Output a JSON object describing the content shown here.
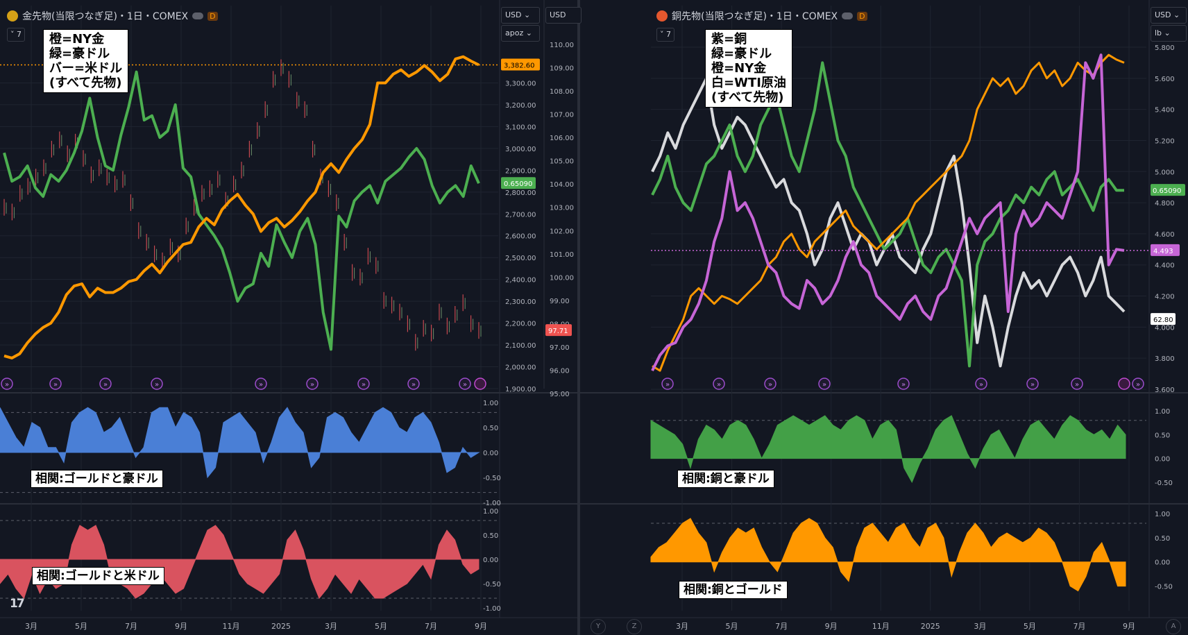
{
  "panels": {
    "left": {
      "title": "金先物(当限つなぎ足)・1日・COMEX",
      "badge": "D",
      "interval_button": "7",
      "currency_right": "USD",
      "currency_left": "USD",
      "unit": "apoz",
      "legend": "橙=NY金\n緑=豪ドル\nバー=米ドル\n(すべて先物)",
      "corr1_label": "相関:ゴールドと豪ドル",
      "corr2_label": "相関:ゴールドと米ドル"
    },
    "right": {
      "title": "銅先物(当限つなぎ足)・1日・COMEX",
      "badge": "D",
      "interval_button": "7",
      "currency": "USD",
      "unit": "lb",
      "legend": "紫=銅\n緑=豪ドル\n橙=NY金\n白=WTI原油\n(すべて先物)",
      "corr1_label": "相関:銅と豪ドル",
      "corr2_label": "相関:銅とゴールド"
    }
  },
  "axis_letters": [
    "Y",
    "Z",
    "A"
  ],
  "colors": {
    "gold": "#ff9800",
    "aud": "#4caf50",
    "copper": "#c665d6",
    "wti": "#d9dadd",
    "corr_blue": "#4a7fd6",
    "corr_red": "#d9535f",
    "corr_green": "#43a047",
    "corr_orange": "#ff9800"
  },
  "chart_data": [
    {
      "id": "left-main",
      "type": "line",
      "x_ticks": [
        "3月",
        "5月",
        "7月",
        "9月",
        "11月",
        "2025",
        "3月",
        "5月",
        "7月",
        "9月"
      ],
      "y_left": {
        "ticks": [
          "3,300.00",
          "3,200.00",
          "3,100.00",
          "3,000.00",
          "2,900.00",
          "2,800.00",
          "2,700.00",
          "2,600.00",
          "2,500.00",
          "2,400.00",
          "2,300.00",
          "2,200.00",
          "2,100.00",
          "2,000.00",
          "1,900.00"
        ],
        "min": 1900,
        "max": 3400
      },
      "y_right": {
        "ticks": [
          "110.00",
          "109.00",
          "108.00",
          "107.00",
          "106.00",
          "105.00",
          "104.00",
          "103.00",
          "102.00",
          "101.00",
          "100.00",
          "99.00",
          "98.00",
          "97.00",
          "96.00",
          "95.00"
        ],
        "min": 95,
        "max": 110
      },
      "series": [
        {
          "name": "NY金",
          "color": "#ff9800",
          "scale": "left",
          "last_label": "3,382.60",
          "values": [
            2050,
            2040,
            2060,
            2110,
            2150,
            2180,
            2200,
            2250,
            2330,
            2370,
            2380,
            2320,
            2360,
            2340,
            2340,
            2360,
            2390,
            2400,
            2440,
            2470,
            2430,
            2480,
            2520,
            2560,
            2570,
            2640,
            2680,
            2650,
            2720,
            2760,
            2790,
            2740,
            2700,
            2620,
            2660,
            2680,
            2640,
            2670,
            2710,
            2760,
            2800,
            2890,
            2930,
            2890,
            2950,
            3000,
            3040,
            3110,
            3300,
            3300,
            3340,
            3360,
            3330,
            3350,
            3380,
            3350,
            3310,
            3340,
            3410,
            3420,
            3400,
            3382.6
          ]
        },
        {
          "name": "豪ドル",
          "color": "#4caf50",
          "scale": "left",
          "last_label": "0.65090",
          "values": [
            2980,
            2850,
            2870,
            2920,
            2820,
            2780,
            2880,
            2850,
            2900,
            2980,
            3080,
            3230,
            3050,
            2920,
            2900,
            3060,
            3190,
            3350,
            3130,
            3150,
            3050,
            3080,
            3200,
            2910,
            2870,
            2700,
            2650,
            2600,
            2540,
            2430,
            2300,
            2360,
            2380,
            2520,
            2460,
            2650,
            2570,
            2500,
            2620,
            2680,
            2560,
            2250,
            2080,
            2690,
            2640,
            2760,
            2800,
            2830,
            2750,
            2850,
            2880,
            2910,
            2960,
            3000,
            2950,
            2830,
            2750,
            2800,
            2830,
            2780,
            2920,
            2840
          ]
        },
        {
          "name": "米ドル",
          "color": "#d9535f",
          "scale": "right",
          "last_label": "97.71",
          "values": [
            103.0,
            102.8,
            103.6,
            103.9,
            104.3,
            104.7,
            105.5,
            105.9,
            105.3,
            105.8,
            105.1,
            104.4,
            104.7,
            104.3,
            104.0,
            104.2,
            103.2,
            102.0,
            101.5,
            101.0,
            100.7,
            101.3,
            101.0,
            102.2,
            103.0,
            103.6,
            103.8,
            104.2,
            103.3,
            104.0,
            104.6,
            105.5,
            106.3,
            107.2,
            108.5,
            109.0,
            108.5,
            107.6,
            107.2,
            105.5,
            104.3,
            103.8,
            103.2,
            101.5,
            100.2,
            100.0,
            100.9,
            100.5,
            99.0,
            98.8,
            98.5,
            98.0,
            97.2,
            97.8,
            97.6,
            98.5,
            97.9,
            98.4,
            98.9,
            98.0,
            97.71
          ]
        }
      ]
    },
    {
      "id": "left-corr1",
      "type": "area",
      "title": "相関:ゴールドと豪ドル",
      "y_ticks": [
        "1.00",
        "0.50",
        "0.00",
        "-0.50",
        "-1.00"
      ],
      "ylim": [
        -1,
        1
      ],
      "values": [
        0.9,
        0.6,
        0.3,
        0.1,
        0.6,
        0.5,
        0.1,
        0.1,
        -0.2,
        0.6,
        0.8,
        0.9,
        0.8,
        0.4,
        0.5,
        0.7,
        0.3,
        -0.1,
        0.1,
        0.8,
        0.9,
        0.9,
        0.5,
        0.8,
        0.7,
        0.4,
        -0.5,
        -0.3,
        0.6,
        0.7,
        0.8,
        0.6,
        0.4,
        -0.2,
        0.2,
        0.7,
        0.9,
        0.6,
        0.4,
        -0.3,
        -0.1,
        0.7,
        0.8,
        0.7,
        0.4,
        0.2,
        0.5,
        0.8,
        0.9,
        0.8,
        0.5,
        0.4,
        0.7,
        0.8,
        0.6,
        0.2,
        -0.4,
        -0.3,
        0.1,
        -0.1,
        0.0
      ]
    },
    {
      "id": "left-corr2",
      "type": "area",
      "title": "相関:ゴールドと米ドル",
      "y_ticks": [
        "1.00",
        "0.50",
        "0.00",
        "-0.50",
        "-1.00"
      ],
      "ylim": [
        -1,
        1
      ],
      "values": [
        -0.5,
        -0.3,
        -0.6,
        -0.8,
        -0.3,
        -0.7,
        -0.4,
        -0.6,
        -0.5,
        0.3,
        0.7,
        0.6,
        0.7,
        0.3,
        -0.4,
        -0.5,
        -0.6,
        -0.8,
        -0.7,
        -0.5,
        -0.3,
        -0.5,
        -0.7,
        -0.6,
        -0.2,
        0.2,
        0.6,
        0.7,
        0.5,
        0.1,
        -0.3,
        -0.5,
        -0.6,
        -0.7,
        -0.5,
        -0.3,
        0.4,
        0.6,
        0.2,
        -0.4,
        -0.8,
        -0.6,
        -0.3,
        -0.5,
        -0.7,
        -0.4,
        -0.6,
        -0.8,
        -0.8,
        -0.7,
        -0.6,
        -0.5,
        -0.3,
        -0.1,
        -0.4,
        0.3,
        0.6,
        0.4,
        -0.1,
        -0.3,
        -0.2
      ]
    },
    {
      "id": "right-main",
      "type": "line",
      "x_ticks": [
        "3月",
        "5月",
        "7月",
        "9月",
        "11月",
        "2025",
        "3月",
        "5月",
        "7月",
        "9月"
      ],
      "y_right": {
        "ticks": [
          "5.800",
          "5.600",
          "5.400",
          "5.200",
          "5.000",
          "4.800",
          "4.600",
          "4.400",
          "4.200",
          "4.000",
          "3.800",
          "3.600"
        ],
        "min": 3.6,
        "max": 5.8
      },
      "series": [
        {
          "name": "銅",
          "color": "#c665d6",
          "scale": "right",
          "last_label": "4.493",
          "values": [
            3.72,
            3.82,
            3.88,
            3.9,
            4.0,
            4.05,
            4.15,
            4.3,
            4.55,
            4.7,
            5.0,
            4.75,
            4.8,
            4.7,
            4.55,
            4.4,
            4.35,
            4.2,
            4.15,
            4.12,
            4.3,
            4.25,
            4.15,
            4.2,
            4.3,
            4.45,
            4.55,
            4.4,
            4.35,
            4.2,
            4.15,
            4.1,
            4.05,
            4.15,
            4.2,
            4.1,
            4.05,
            4.2,
            4.25,
            4.4,
            4.55,
            4.7,
            4.6,
            4.7,
            4.75,
            4.8,
            4.1,
            4.6,
            4.75,
            4.65,
            4.7,
            4.8,
            4.75,
            4.7,
            4.85,
            5.0,
            5.7,
            5.6,
            5.75,
            4.4,
            4.5,
            4.493
          ]
        },
        {
          "name": "豪ドル",
          "color": "#4caf50",
          "scale": "right",
          "last_label": "0.65090",
          "values": [
            4.85,
            4.95,
            5.1,
            4.9,
            4.8,
            4.75,
            4.9,
            5.05,
            5.1,
            5.2,
            5.3,
            5.1,
            5.0,
            5.1,
            5.3,
            5.4,
            5.5,
            5.3,
            5.1,
            5.0,
            5.2,
            5.4,
            5.7,
            5.45,
            5.2,
            5.1,
            4.9,
            4.8,
            4.7,
            4.6,
            4.5,
            4.55,
            4.6,
            4.7,
            4.55,
            4.4,
            4.35,
            4.45,
            4.5,
            4.4,
            4.3,
            3.75,
            4.4,
            4.55,
            4.6,
            4.7,
            4.75,
            4.85,
            4.8,
            4.9,
            4.85,
            4.95,
            5.0,
            4.85,
            4.9,
            4.95,
            4.85,
            4.75,
            4.9,
            4.95,
            4.88,
            4.88
          ]
        },
        {
          "name": "NY金",
          "color": "#ff9800",
          "scale": "right",
          "last_label": "",
          "values": [
            3.75,
            3.72,
            3.85,
            3.95,
            4.05,
            4.2,
            4.25,
            4.2,
            4.15,
            4.2,
            4.18,
            4.15,
            4.2,
            4.25,
            4.3,
            4.4,
            4.45,
            4.55,
            4.6,
            4.5,
            4.45,
            4.55,
            4.6,
            4.65,
            4.7,
            4.75,
            4.65,
            4.6,
            4.55,
            4.5,
            4.55,
            4.6,
            4.65,
            4.7,
            4.8,
            4.85,
            4.9,
            4.95,
            5.0,
            5.05,
            5.1,
            5.2,
            5.4,
            5.5,
            5.6,
            5.55,
            5.6,
            5.5,
            5.55,
            5.65,
            5.7,
            5.6,
            5.65,
            5.55,
            5.6,
            5.7,
            5.65,
            5.62,
            5.7,
            5.75,
            5.72,
            5.7
          ]
        },
        {
          "name": "WTI原油",
          "color": "#d9dadd",
          "scale": "right",
          "last_label": "62.80",
          "values": [
            5.0,
            5.1,
            5.25,
            5.15,
            5.3,
            5.4,
            5.5,
            5.6,
            5.3,
            5.15,
            5.25,
            5.35,
            5.3,
            5.2,
            5.1,
            5.0,
            4.9,
            4.95,
            4.8,
            4.75,
            4.6,
            4.4,
            4.5,
            4.7,
            4.8,
            4.65,
            4.5,
            4.6,
            4.55,
            4.4,
            4.5,
            4.6,
            4.45,
            4.4,
            4.35,
            4.5,
            4.6,
            4.8,
            5.0,
            5.1,
            4.8,
            4.4,
            3.9,
            4.2,
            4.0,
            3.75,
            4.0,
            4.2,
            4.35,
            4.25,
            4.3,
            4.2,
            4.3,
            4.4,
            4.45,
            4.35,
            4.2,
            4.3,
            4.45,
            4.2,
            4.15,
            4.1
          ]
        }
      ]
    },
    {
      "id": "right-corr1",
      "type": "area",
      "title": "相関:銅と豪ドル",
      "y_ticks": [
        "1.00",
        "0.50",
        "0.00",
        "-0.50"
      ],
      "ylim": [
        -0.75,
        1.0
      ],
      "values": [
        0.8,
        0.7,
        0.6,
        0.5,
        0.3,
        -0.2,
        0.4,
        0.7,
        0.6,
        0.4,
        0.7,
        0.8,
        0.7,
        0.4,
        0.0,
        0.3,
        0.7,
        0.8,
        0.9,
        0.8,
        0.7,
        0.8,
        0.9,
        0.7,
        0.6,
        0.8,
        0.9,
        0.8,
        0.4,
        0.7,
        0.8,
        0.6,
        -0.2,
        -0.5,
        -0.1,
        0.2,
        0.6,
        0.8,
        0.9,
        0.5,
        0.1,
        -0.2,
        0.2,
        0.5,
        0.6,
        0.3,
        0.0,
        0.4,
        0.7,
        0.8,
        0.6,
        0.4,
        0.7,
        0.9,
        0.8,
        0.6,
        0.5,
        0.6,
        0.4,
        0.7,
        0.5
      ]
    },
    {
      "id": "right-corr2",
      "type": "area",
      "title": "相関:銅とゴールド",
      "y_ticks": [
        "1.00",
        "0.50",
        "0.00",
        "-0.50"
      ],
      "ylim": [
        -0.75,
        1.0
      ],
      "values": [
        0.1,
        0.3,
        0.4,
        0.6,
        0.8,
        0.9,
        0.6,
        0.4,
        -0.2,
        0.2,
        0.5,
        0.7,
        0.6,
        0.7,
        0.3,
        0.0,
        -0.2,
        0.2,
        0.6,
        0.8,
        0.9,
        0.8,
        0.5,
        0.3,
        -0.2,
        -0.4,
        0.3,
        0.7,
        0.8,
        0.6,
        0.4,
        0.7,
        0.8,
        0.5,
        0.3,
        0.7,
        0.8,
        0.5,
        -0.3,
        0.2,
        0.6,
        0.8,
        0.6,
        0.3,
        0.5,
        0.6,
        0.5,
        0.4,
        0.5,
        0.7,
        0.6,
        0.4,
        0.0,
        -0.5,
        -0.6,
        -0.3,
        0.2,
        0.4,
        0.0,
        -0.5,
        -0.5
      ]
    }
  ]
}
